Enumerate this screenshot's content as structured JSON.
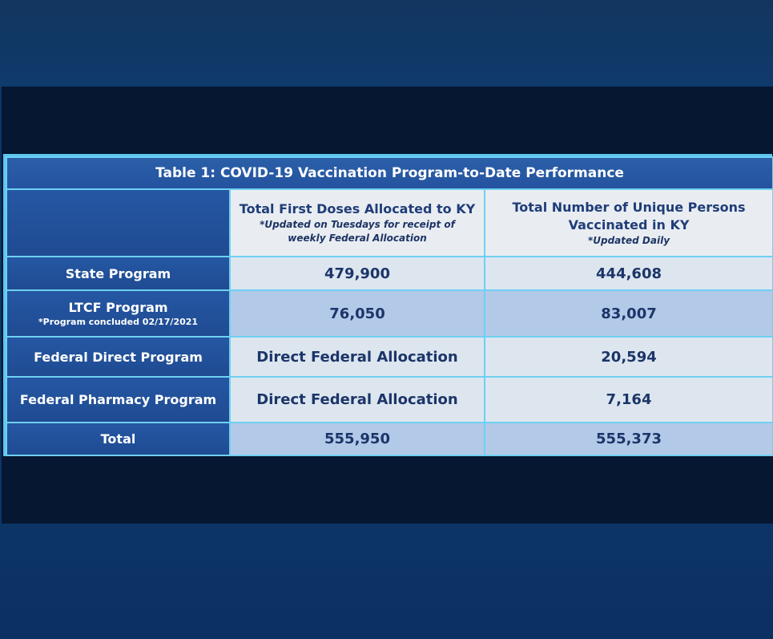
{
  "table": {
    "title": "Table 1:  COVID-19 Vaccination Program-to-Date Performance",
    "columns": [
      {
        "heading": "Total First Doses Allocated to KY",
        "note_line1": "*Updated on Tuesdays for receipt of",
        "note_line2": "weekly Federal Allocation"
      },
      {
        "heading_line1": "Total Number of Unique Persons",
        "heading_line2": "Vaccinated in KY",
        "note": "*Updated Daily"
      }
    ],
    "rows": [
      {
        "label": "State Program",
        "sub": "",
        "first_doses": "479,900",
        "unique_persons": "444,608"
      },
      {
        "label": "LTCF Program",
        "sub": "*Program concluded 02/17/2021",
        "first_doses": "76,050",
        "unique_persons": "83,007"
      },
      {
        "label": "Federal Direct Program",
        "sub": "",
        "first_doses": "Direct Federal Allocation",
        "unique_persons": "20,594"
      },
      {
        "label": "Federal Pharmacy Program",
        "sub": "",
        "first_doses": "Direct Federal Allocation",
        "unique_persons": "7,164"
      },
      {
        "label": "Total",
        "sub": "",
        "first_doses": "555,950",
        "unique_persons": "555,373"
      }
    ]
  }
}
